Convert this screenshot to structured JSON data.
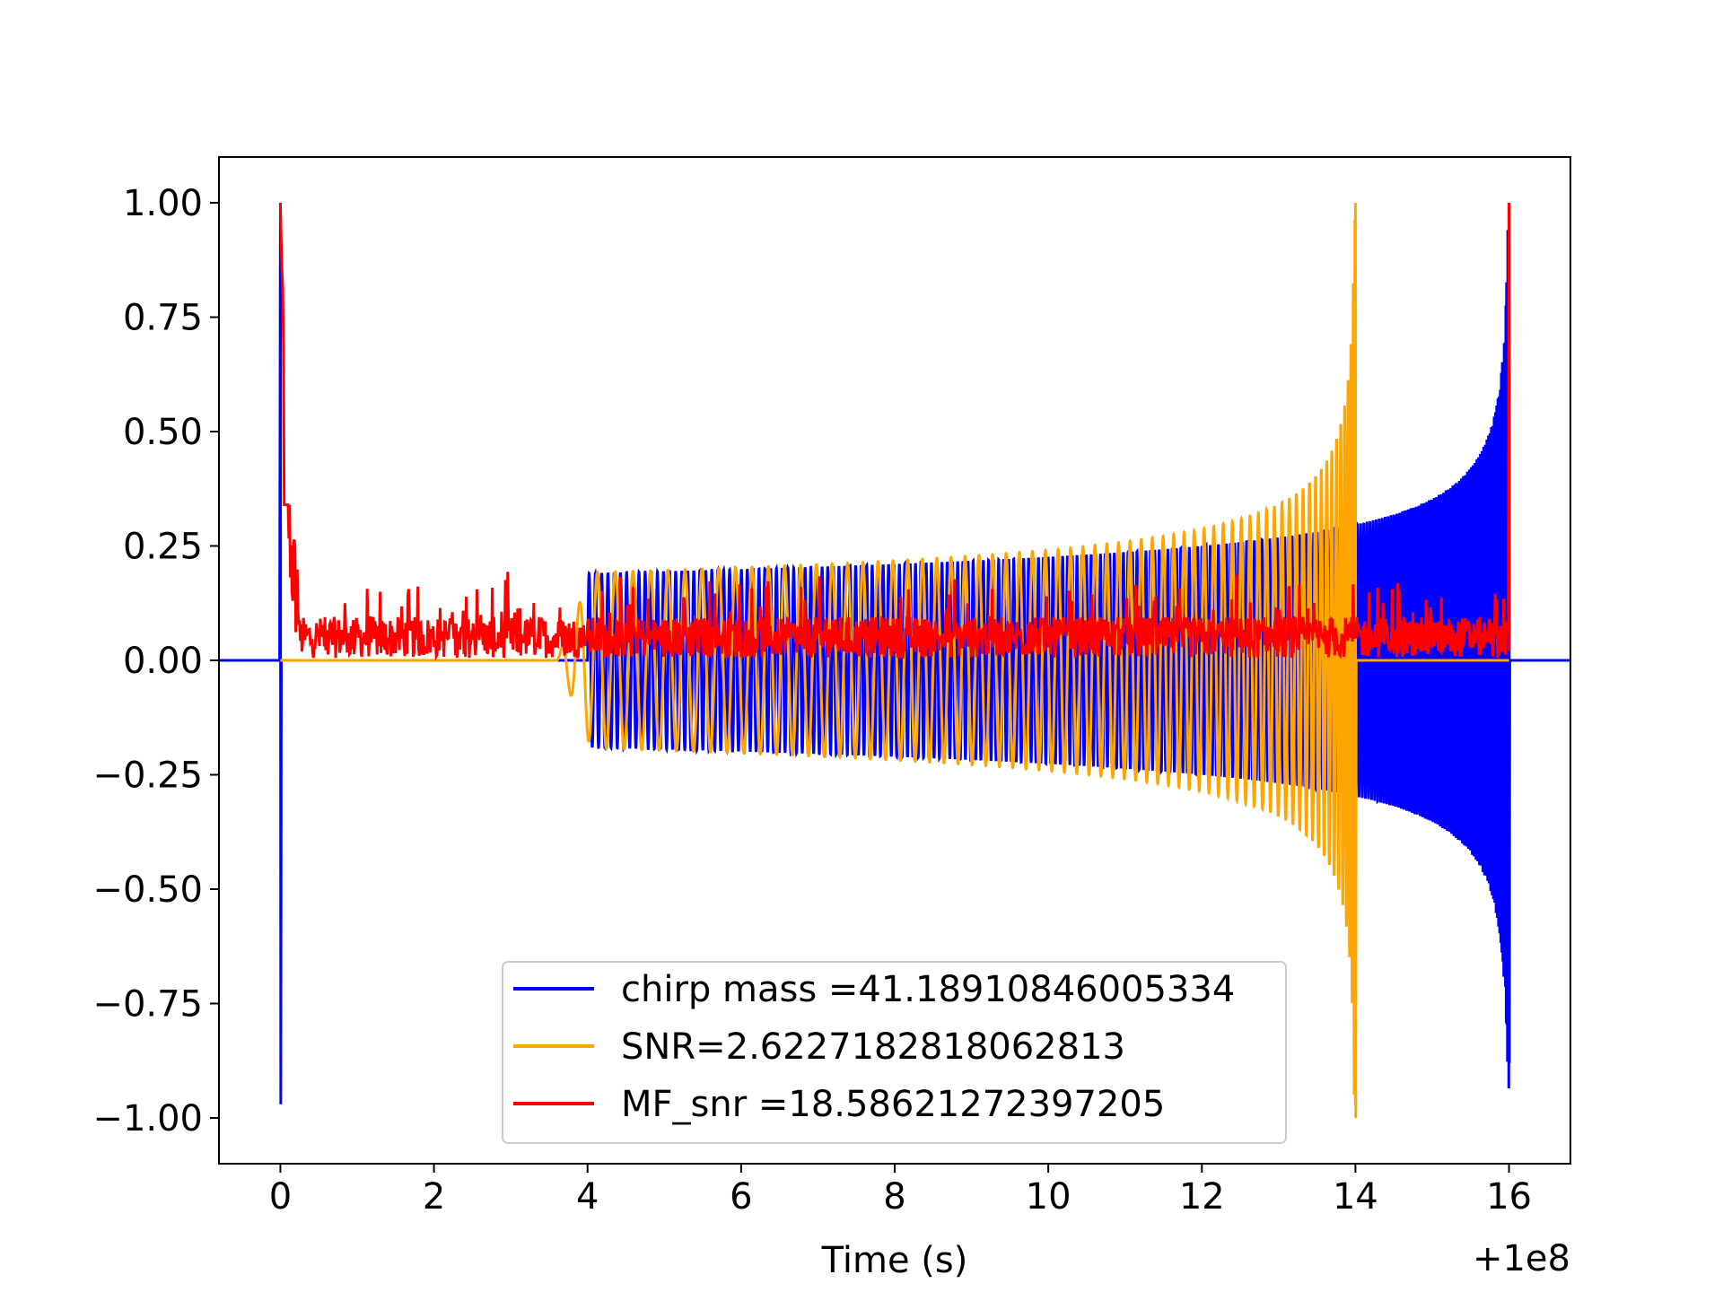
{
  "chart_data": {
    "type": "line",
    "xlabel": "Time (s)",
    "ylabel": "",
    "x_offset_label": "+1e8",
    "xlim": [
      -0.8,
      16.8
    ],
    "ylim": [
      -1.1,
      1.1
    ],
    "x_ticks": [
      0,
      2,
      4,
      6,
      8,
      10,
      12,
      14,
      16
    ],
    "x_tick_labels": [
      "0",
      "2",
      "4",
      "6",
      "8",
      "10",
      "12",
      "14",
      "16"
    ],
    "y_ticks": [
      1.0,
      0.75,
      0.5,
      0.25,
      0.0,
      -0.25,
      -0.5,
      -0.75,
      -1.0
    ],
    "y_tick_labels": [
      "1.00",
      "0.75",
      "0.50",
      "0.25",
      "0.00",
      "−0.25",
      "−0.50",
      "−0.75",
      "−1.00"
    ],
    "grid": false,
    "legend_position": "lower-center",
    "series": [
      {
        "name": "chirp mass =41.18910846005334",
        "color": "#0000ff",
        "kind": "chirp",
        "start": 4.0,
        "end": 16.0,
        "peak": 1.0,
        "min": -0.88,
        "start_amp": 0.19,
        "amp_at_14": 0.26,
        "cycles": 60,
        "initial_spike": {
          "x": 0.0,
          "max": 1.0,
          "min": -0.97
        }
      },
      {
        "name": "SNR=2.6227182818062813",
        "color": "#ffa500",
        "kind": "chirp",
        "start": 3.6,
        "end": 14.0,
        "peak": 1.0,
        "min": -1.0,
        "start_amp": 0.19,
        "cycles": 70
      },
      {
        "name": "MF_snr =18.58621272397205",
        "color": "#ff0000",
        "kind": "matched-filter",
        "start": 0.0,
        "end": 16.0,
        "initial_peak": 1.0,
        "final_peak": 1.0,
        "baseline": 0.05,
        "noise_max": 0.21
      }
    ]
  }
}
